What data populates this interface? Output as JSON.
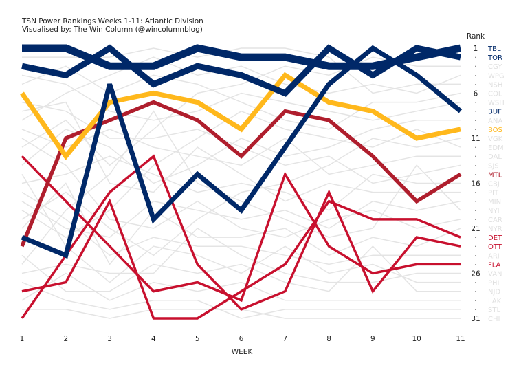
{
  "chart_data": {
    "type": "line",
    "title": "TSN Power Rankings Weeks 1-11: Atlantic Division",
    "subtitle": "Visualised by: The Win Column (@wincolumnblog)",
    "xlabel": "WEEK",
    "ylabel": "Rank",
    "x": [
      1,
      2,
      3,
      4,
      5,
      6,
      7,
      8,
      9,
      10,
      11
    ],
    "xlim": [
      1,
      11
    ],
    "ylim": [
      1,
      31
    ],
    "y_inverted": true,
    "rank_ticks": [
      1,
      6,
      11,
      16,
      21,
      26,
      31
    ],
    "grid": false,
    "legend": "right (team labels at final rank)",
    "highlight_series": [
      {
        "name": "TBL",
        "color": "#002868",
        "weight": "heaviest",
        "values": [
          1,
          1,
          3,
          3,
          1,
          2,
          2,
          3,
          3,
          2,
          1
        ]
      },
      {
        "name": "TOR",
        "color": "#002868",
        "weight": "heavy",
        "values": [
          3,
          4,
          1,
          5,
          3,
          4,
          6,
          1,
          4,
          1,
          2
        ]
      },
      {
        "name": "BUF",
        "color": "#002868",
        "weight": "medium",
        "values": [
          22,
          24,
          5,
          20,
          15,
          19,
          12,
          5,
          1,
          4,
          8
        ]
      },
      {
        "name": "BOS",
        "color": "#FFB81C",
        "weight": "medium",
        "values": [
          6,
          13,
          7,
          6,
          7,
          10,
          4,
          7,
          8,
          11,
          10
        ]
      },
      {
        "name": "MTL",
        "color": "#AF1E2D",
        "weight": "medium-light",
        "values": [
          23,
          11,
          9,
          7,
          9,
          13,
          8,
          9,
          13,
          18,
          15
        ]
      },
      {
        "name": "DET",
        "color": "#C8102E",
        "weight": "light",
        "values": [
          28,
          27,
          18,
          31,
          31,
          28,
          25,
          18,
          20,
          20,
          22
        ]
      },
      {
        "name": "OTT",
        "color": "#C8102E",
        "weight": "light",
        "values": [
          31,
          24,
          17,
          13,
          25,
          30,
          28,
          17,
          28,
          22,
          23
        ]
      },
      {
        "name": "FLA",
        "color": "#C8102E",
        "weight": "light",
        "values": [
          13,
          18,
          23,
          28,
          27,
          29,
          15,
          23,
          26,
          25,
          25
        ]
      }
    ],
    "background_series_color": "#e4e4e4",
    "background_series": [
      {
        "name": "CGY",
        "values": [
          12,
          9,
          14,
          10,
          6,
          5,
          3,
          4,
          2,
          3,
          3
        ]
      },
      {
        "name": "WPG",
        "values": [
          9,
          6,
          4,
          2,
          4,
          3,
          5,
          6,
          5,
          6,
          4
        ]
      },
      {
        "name": "NSH",
        "values": [
          2,
          2,
          2,
          1,
          2,
          1,
          1,
          2,
          6,
          5,
          5
        ]
      },
      {
        "name": "COL",
        "values": [
          5,
          3,
          6,
          4,
          5,
          7,
          9,
          10,
          7,
          7,
          6
        ]
      },
      {
        "name": "WSH",
        "values": [
          4,
          5,
          8,
          9,
          8,
          6,
          7,
          8,
          9,
          8,
          7
        ]
      },
      {
        "name": "ANA",
        "values": [
          14,
          10,
          12,
          16,
          14,
          11,
          13,
          12,
          10,
          9,
          9
        ]
      },
      {
        "name": "VGK",
        "values": [
          20,
          17,
          21,
          24,
          20,
          17,
          16,
          14,
          11,
          12,
          11
        ]
      },
      {
        "name": "EDM",
        "values": [
          19,
          22,
          19,
          14,
          11,
          8,
          10,
          11,
          12,
          10,
          12
        ]
      },
      {
        "name": "DAL",
        "values": [
          10,
          12,
          10,
          12,
          13,
          14,
          11,
          15,
          14,
          13,
          13
        ]
      },
      {
        "name": "SJS",
        "values": [
          7,
          8,
          11,
          11,
          10,
          12,
          14,
          13,
          16,
          15,
          14
        ]
      },
      {
        "name": "CBJ",
        "values": [
          16,
          15,
          13,
          15,
          17,
          16,
          17,
          19,
          15,
          16,
          16
        ]
      },
      {
        "name": "PIT",
        "values": [
          8,
          7,
          16,
          17,
          12,
          15,
          18,
          16,
          17,
          17,
          17
        ]
      },
      {
        "name": "MIN",
        "values": [
          18,
          21,
          22,
          18,
          19,
          20,
          19,
          21,
          18,
          19,
          18
        ]
      },
      {
        "name": "NYI",
        "values": [
          25,
          19,
          15,
          8,
          16,
          18,
          20,
          22,
          21,
          14,
          19
        ]
      },
      {
        "name": "CAR",
        "values": [
          11,
          14,
          20,
          21,
          18,
          21,
          22,
          20,
          19,
          21,
          20
        ]
      },
      {
        "name": "NYR",
        "values": [
          21,
          16,
          25,
          19,
          22,
          22,
          21,
          24,
          22,
          23,
          21
        ]
      },
      {
        "name": "ARI",
        "values": [
          17,
          20,
          24,
          22,
          23,
          23,
          24,
          25,
          24,
          24,
          24
        ]
      },
      {
        "name": "VAN",
        "values": [
          26,
          25,
          26,
          26,
          21,
          24,
          26,
          27,
          27,
          26,
          26
        ]
      },
      {
        "name": "PHI",
        "values": [
          15,
          23,
          27,
          23,
          24,
          26,
          23,
          26,
          25,
          27,
          27
        ]
      },
      {
        "name": "NJD",
        "values": [
          24,
          28,
          28,
          25,
          26,
          25,
          27,
          28,
          23,
          28,
          28
        ]
      },
      {
        "name": "LAK",
        "values": [
          29,
          26,
          29,
          27,
          28,
          27,
          29,
          29,
          29,
          29,
          29
        ]
      },
      {
        "name": "STL",
        "values": [
          27,
          29,
          30,
          29,
          29,
          31,
          30,
          30,
          30,
          30,
          30
        ]
      },
      {
        "name": "CHI",
        "values": [
          30,
          30,
          31,
          30,
          30,
          30,
          31,
          31,
          31,
          31,
          31
        ]
      }
    ],
    "rank_label_order": [
      "TBL",
      "TOR",
      "CGY",
      "WPG",
      "NSH",
      "COL",
      "WSH",
      "BUF",
      "ANA",
      "BOS",
      "VGK",
      "EDM",
      "DAL",
      "SJS",
      "MTL",
      "CBJ",
      "PIT",
      "MIN",
      "NYI",
      "CAR",
      "NYR",
      "DET",
      "OTT",
      "ARI",
      "FLA",
      "VAN",
      "PHI",
      "NJD",
      "LAK",
      "STL",
      "CHI"
    ],
    "label_colors": {
      "TBL": "#002868",
      "TOR": "#002868",
      "BUF": "#002868",
      "BOS": "#FFB81C",
      "MTL": "#AF1E2D",
      "DET": "#C8102E",
      "OTT": "#C8102E",
      "FLA": "#C8102E",
      "other": "#e0e0e0"
    }
  },
  "labels": {
    "title": "TSN Power Rankings Weeks 1-11: Atlantic Division",
    "subtitle": "Visualised by: The Win Column (@wincolumnblog)",
    "xlabel": "WEEK",
    "rank_header": "Rank"
  }
}
